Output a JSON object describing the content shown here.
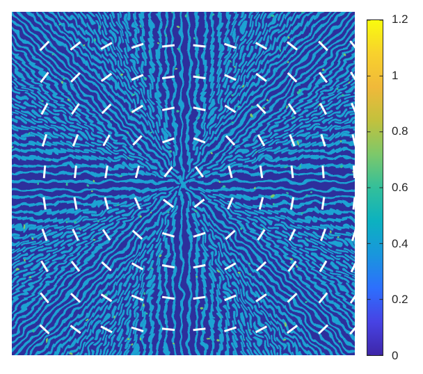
{
  "figure": {
    "description_kind": "pattern field with director overlay",
    "colormap": [
      "#3e26a8",
      "#4743e4",
      "#2d6ffd",
      "#1996dd",
      "#0cb1c0",
      "#33bf9a",
      "#7dc86a",
      "#c2c13d",
      "#f0b93a",
      "#f8d12d",
      "#f9fb0e"
    ]
  },
  "colorbar": {
    "range": [
      0,
      1.2
    ],
    "ticks": [
      "0",
      "0.2",
      "0.4",
      "0.6",
      "0.8",
      "1",
      "1.2"
    ]
  },
  "overlay": {
    "color": "#ffffff",
    "grid_cols": 11,
    "grid_rows": 10
  }
}
